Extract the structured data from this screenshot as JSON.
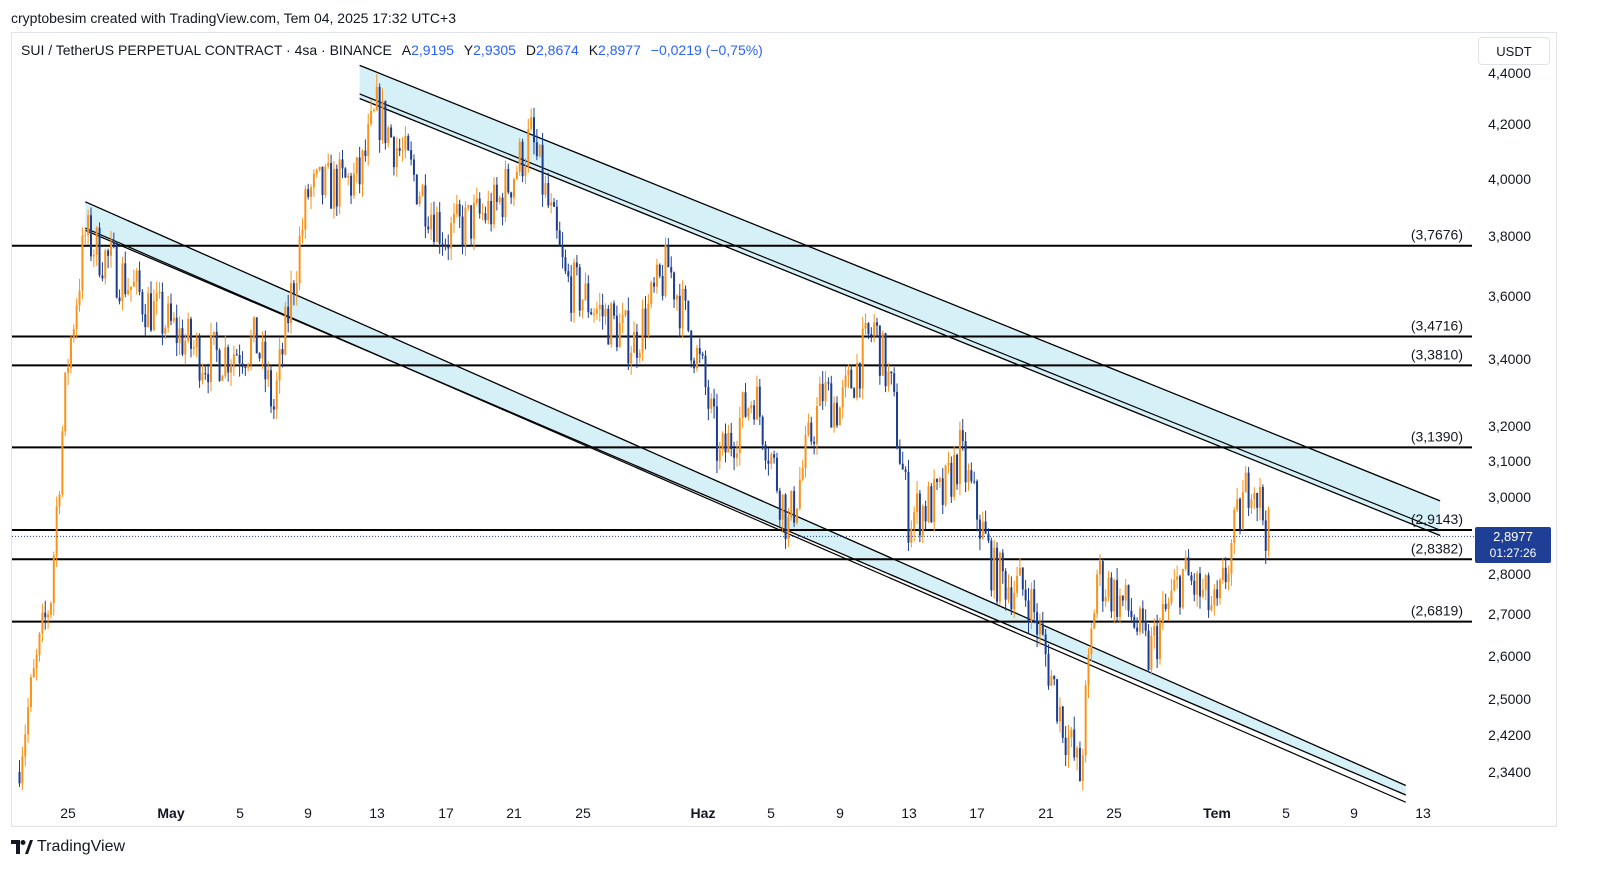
{
  "header": {
    "credit": "cryptobesim created with TradingView.com, Tem 04, 2025 17:32 UTC+3"
  },
  "legend": {
    "symbol": "SUI / TetherUS PERPETUAL CONTRACT · 4sa · BINANCE",
    "open_label": "A",
    "open": "2,9195",
    "high_label": "Y",
    "high": "2,9305",
    "low_label": "D",
    "low": "2,8674",
    "close_label": "K",
    "close": "2,8977",
    "change": "−0,0219 (−0,75%)"
  },
  "currency_button": "USDT",
  "price_tag": {
    "price": "2,8977",
    "countdown": "01:27:26"
  },
  "footer": {
    "brand": "TradingView"
  },
  "colors": {
    "up_candle": "#f7931a",
    "down_candle": "#1c3d8f",
    "channel_fill": "#d6f0f8",
    "level_line": "#000000",
    "price_tag": "#1e3f95"
  },
  "chart_data": {
    "type": "candlestick",
    "y_axis_unit": "USDT",
    "y_ticks": [
      "4,4000",
      "4,2000",
      "4,0000",
      "3,8000",
      "3,6000",
      "3,4000",
      "3,2000",
      "3,1000",
      "3,0000",
      "2,8000",
      "2,7000",
      "2,6000",
      "2,5000",
      "2,4200",
      "2,3400"
    ],
    "x_ticks": [
      "25",
      "May",
      "5",
      "9",
      "13",
      "17",
      "21",
      "25",
      "Haz",
      "5",
      "9",
      "13",
      "17",
      "21",
      "25",
      "Tem",
      "5",
      "9",
      "13"
    ],
    "horizontal_levels": [
      {
        "label": "(3,7676)",
        "value": 3.7676
      },
      {
        "label": "(3,4716)",
        "value": 3.4716
      },
      {
        "label": "(3,3810)",
        "value": 3.381
      },
      {
        "label": "(3,1390)",
        "value": 3.139
      },
      {
        "label": "(2,9143)",
        "value": 2.9143
      },
      {
        "label": "(2,8382)",
        "value": 2.8382
      },
      {
        "label": "(2,6819)",
        "value": 2.6819
      }
    ],
    "last_price": 2.8977,
    "channels": [
      {
        "name": "lower descending channel",
        "upper_start": [
          "Apr 26",
          3.92
        ],
        "upper_end": [
          "Jul 12",
          2.31
        ],
        "lower_start": [
          "Apr 26",
          3.82
        ],
        "lower_end": [
          "Jul 12",
          2.29
        ]
      },
      {
        "name": "upper descending channel",
        "upper_start": [
          "May 12",
          4.43
        ],
        "upper_end": [
          "Jul 14",
          2.99
        ],
        "lower_start": [
          "May 12",
          4.3
        ],
        "lower_end": [
          "Jul 14",
          2.9
        ]
      }
    ],
    "price_path": [
      {
        "date": "Apr 22",
        "close": 2.34
      },
      {
        "date": "Apr 24",
        "close": 2.75
      },
      {
        "date": "Apr 25",
        "close": 3.4
      },
      {
        "date": "Apr 26",
        "close": 3.8
      },
      {
        "date": "Apr 30",
        "close": 3.55
      },
      {
        "date": "May 3",
        "close": 3.4
      },
      {
        "date": "May 6",
        "close": 3.45
      },
      {
        "date": "May 7",
        "close": 3.25
      },
      {
        "date": "May 9",
        "close": 3.95
      },
      {
        "date": "May 12",
        "close": 4.0
      },
      {
        "date": "May 13",
        "close": 4.25
      },
      {
        "date": "May 17",
        "close": 3.8
      },
      {
        "date": "May 20",
        "close": 3.9
      },
      {
        "date": "May 22",
        "close": 4.15
      },
      {
        "date": "May 24",
        "close": 3.65
      },
      {
        "date": "May 28",
        "close": 3.45
      },
      {
        "date": "May 30",
        "close": 3.7
      },
      {
        "date": "Jun 1",
        "close": 3.35
      },
      {
        "date": "Jun 2",
        "close": 3.1
      },
      {
        "date": "Jun 4",
        "close": 3.3
      },
      {
        "date": "Jun 6",
        "close": 2.92
      },
      {
        "date": "Jun 8",
        "close": 3.3
      },
      {
        "date": "Jun 9",
        "close": 3.25
      },
      {
        "date": "Jun 11",
        "close": 3.5
      },
      {
        "date": "Jun 12",
        "close": 3.3
      },
      {
        "date": "Jun 13",
        "close": 2.95
      },
      {
        "date": "Jun 15",
        "close": 3.0
      },
      {
        "date": "Jun 16",
        "close": 3.12
      },
      {
        "date": "Jun 18",
        "close": 2.8
      },
      {
        "date": "Jun 20",
        "close": 2.75
      },
      {
        "date": "Jun 22",
        "close": 2.45
      },
      {
        "date": "Jun 23",
        "close": 2.33
      },
      {
        "date": "Jun 24",
        "close": 2.8
      },
      {
        "date": "Jun 26",
        "close": 2.7
      },
      {
        "date": "Jun 27",
        "close": 2.6
      },
      {
        "date": "Jun 29",
        "close": 2.8
      },
      {
        "date": "Jul 1",
        "close": 2.7
      },
      {
        "date": "Jul 2",
        "close": 2.9
      },
      {
        "date": "Jul 3",
        "close": 3.07
      },
      {
        "date": "Jul 4",
        "close": 2.8977
      }
    ]
  }
}
